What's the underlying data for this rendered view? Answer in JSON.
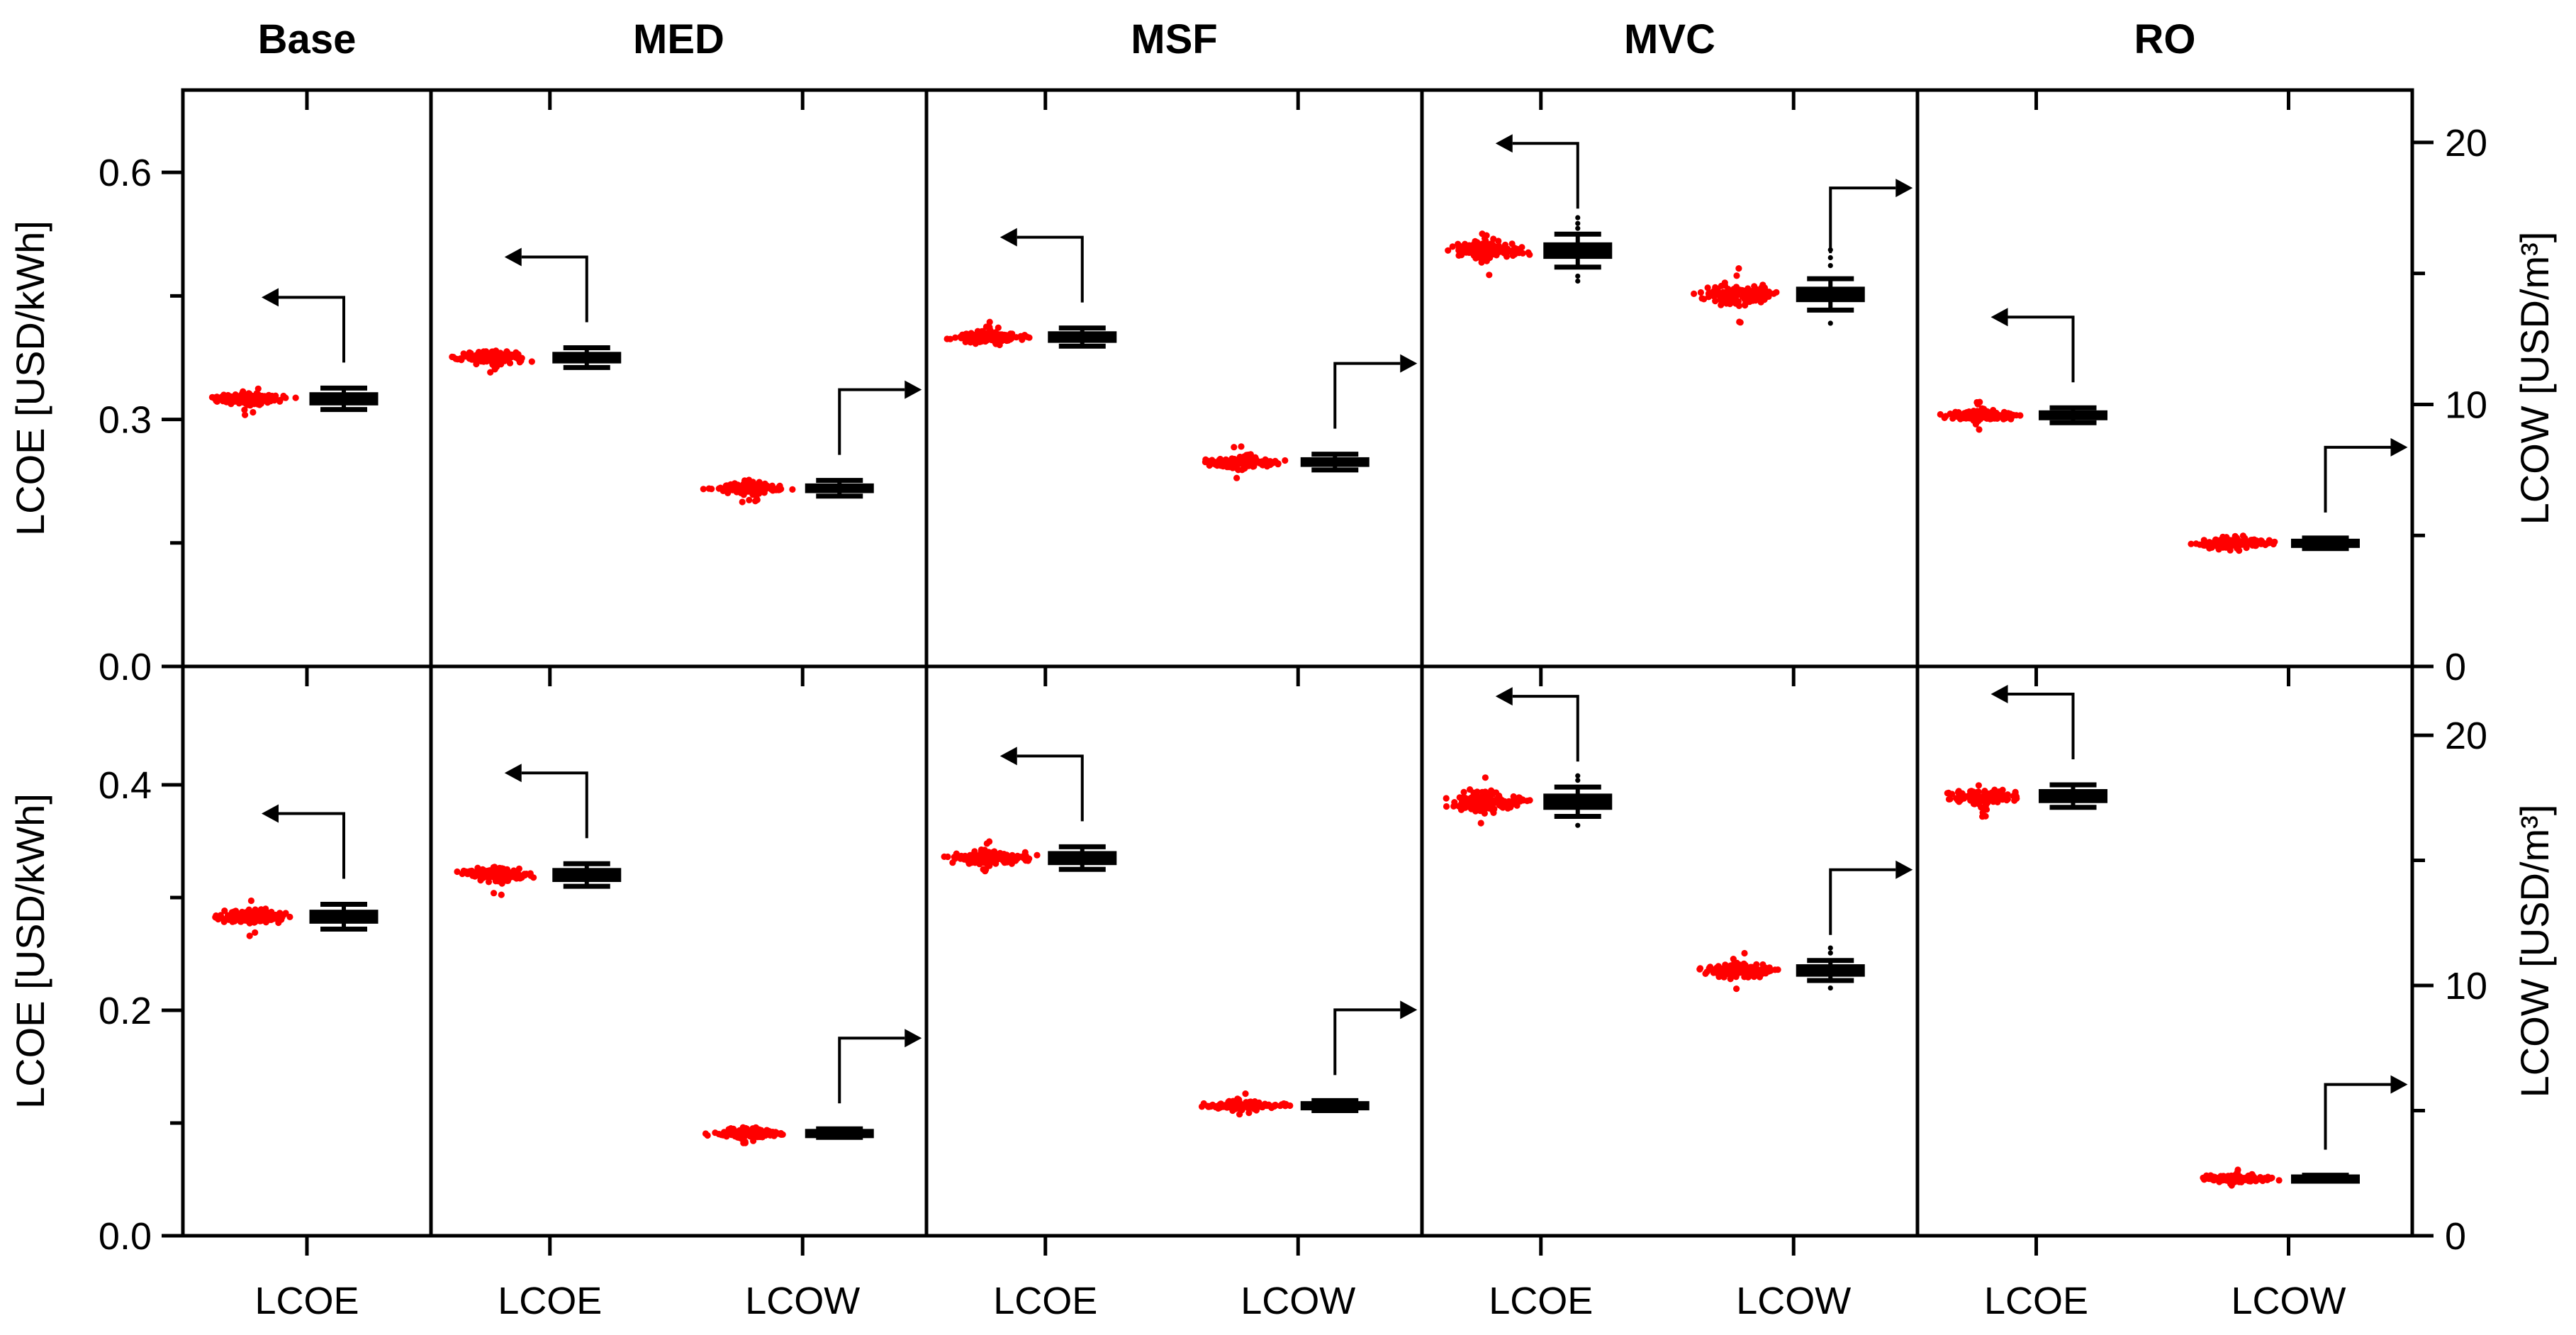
{
  "chart_data": {
    "type": "boxplot-jitter-grid",
    "description": "Monte-Carlo LCOE and LCOW distributions (red jitter clouds) with summary box plots (black) for desalination technologies, two scenario rows",
    "grid": {
      "rows": 2,
      "columns": 5
    },
    "columns": [
      "Base",
      "MED",
      "MSF",
      "MVC",
      "RO"
    ],
    "colors": {
      "points": "#ff0000",
      "box": "#000000",
      "axis": "#000000",
      "background": "#ffffff"
    },
    "legend_position": "none",
    "grid_lines": "off",
    "rows": [
      {
        "name": "row-top",
        "left_axis": {
          "label": "LCOE [USD/kWh]",
          "min": 0,
          "max": 0.7,
          "major_ticks": [
            0.0,
            0.3,
            0.6
          ],
          "minor_ticks": [
            0.15,
            0.45
          ],
          "decimals": 1
        },
        "right_axis": {
          "label": "LCOW [USD/m³]",
          "min": 0,
          "max": 22.0,
          "major_ticks": [
            0,
            10,
            20
          ],
          "minor_ticks": [
            5,
            15
          ],
          "decimals": 0
        },
        "panels": [
          {
            "title": "Base",
            "groups": [
              {
                "label": "LCOE",
                "axis": "left",
                "arrow": "left",
                "center": 0.325,
                "box": [
                  0.312,
                  0.32,
                  0.325,
                  0.33,
                  0.338
                ],
                "jitter_half": 0.009,
                "outliers": []
              }
            ]
          },
          {
            "title": "MED",
            "groups": [
              {
                "label": "LCOE",
                "axis": "left",
                "arrow": "left",
                "center": 0.375,
                "box": [
                  0.363,
                  0.371,
                  0.375,
                  0.379,
                  0.387
                ],
                "jitter_half": 0.009,
                "outliers": []
              },
              {
                "label": "LCOW",
                "axis": "right",
                "arrow": "right",
                "center": 6.8,
                "box": [
                  6.5,
                  6.71,
                  6.8,
                  6.89,
                  7.1
                ],
                "jitter_half": 0.28,
                "outliers": []
              }
            ]
          },
          {
            "title": "MSF",
            "groups": [
              {
                "label": "LCOE",
                "axis": "left",
                "arrow": "left",
                "center": 0.4,
                "box": [
                  0.389,
                  0.396,
                  0.4,
                  0.404,
                  0.411
                ],
                "jitter_half": 0.009,
                "outliers": []
              },
              {
                "label": "LCOW",
                "axis": "right",
                "arrow": "right",
                "center": 7.8,
                "box": [
                  7.5,
                  7.71,
                  7.8,
                  7.89,
                  8.1
                ],
                "jitter_half": 0.28,
                "outliers": []
              }
            ]
          },
          {
            "title": "MVC",
            "groups": [
              {
                "label": "LCOE",
                "axis": "left",
                "arrow": "left",
                "center": 0.505,
                "box": [
                  0.485,
                  0.498,
                  0.505,
                  0.512,
                  0.525
                ],
                "jitter_half": 0.014,
                "outliers": [
                  0.532,
                  0.538,
                  0.545,
                  0.474,
                  0.468
                ]
              },
              {
                "label": "LCOW",
                "axis": "right",
                "arrow": "right",
                "center": 14.2,
                "box": [
                  13.6,
                  14.0,
                  14.2,
                  14.4,
                  14.8
                ],
                "jitter_half": 0.5,
                "outliers": [
                  15.3,
                  15.6,
                  15.9,
                  13.1
                ]
              }
            ]
          },
          {
            "title": "RO",
            "groups": [
              {
                "label": "LCOE",
                "axis": "left",
                "arrow": "left",
                "center": 0.305,
                "box": [
                  0.296,
                  0.302,
                  0.305,
                  0.308,
                  0.314
                ],
                "jitter_half": 0.008,
                "outliers": []
              },
              {
                "label": "LCOW",
                "axis": "right",
                "arrow": "right",
                "center": 4.7,
                "box": [
                  4.5,
                  4.62,
                  4.7,
                  4.78,
                  4.9
                ],
                "jitter_half": 0.26,
                "outliers": []
              }
            ]
          }
        ]
      },
      {
        "name": "row-bottom",
        "left_axis": {
          "label": "LCOE [USD/kWh]",
          "min": 0,
          "max": 0.505,
          "major_ticks": [
            0.0,
            0.2,
            0.4
          ],
          "minor_ticks": [
            0.1,
            0.3
          ],
          "decimals": 1
        },
        "right_axis": {
          "label": "LCOW [USD/m³]",
          "min": 0,
          "max": 22.75,
          "major_ticks": [
            0,
            10,
            20
          ],
          "minor_ticks": [
            5,
            15
          ],
          "decimals": 0
        },
        "panels": [
          {
            "title": "Base",
            "groups": [
              {
                "label": "LCOE",
                "axis": "left",
                "arrow": "left",
                "center": 0.283,
                "box": [
                  0.272,
                  0.279,
                  0.283,
                  0.287,
                  0.294
                ],
                "jitter_half": 0.008,
                "outliers": []
              }
            ]
          },
          {
            "title": "MED",
            "groups": [
              {
                "label": "LCOE",
                "axis": "left",
                "arrow": "left",
                "center": 0.32,
                "box": [
                  0.31,
                  0.316,
                  0.32,
                  0.324,
                  0.33
                ],
                "jitter_half": 0.008,
                "outliers": []
              },
              {
                "label": "LCOW",
                "axis": "right",
                "arrow": "right",
                "center": 4.1,
                "box": [
                  3.93,
                  4.03,
                  4.1,
                  4.17,
                  4.27
                ],
                "jitter_half": 0.22,
                "outliers": []
              }
            ]
          },
          {
            "title": "MSF",
            "groups": [
              {
                "label": "LCOE",
                "axis": "left",
                "arrow": "left",
                "center": 0.335,
                "box": [
                  0.325,
                  0.331,
                  0.335,
                  0.339,
                  0.345
                ],
                "jitter_half": 0.008,
                "outliers": []
              },
              {
                "label": "LCOW",
                "axis": "right",
                "arrow": "right",
                "center": 5.2,
                "box": [
                  5.0,
                  5.12,
                  5.2,
                  5.28,
                  5.4
                ],
                "jitter_half": 0.22,
                "outliers": []
              }
            ]
          },
          {
            "title": "MVC",
            "groups": [
              {
                "label": "LCOE",
                "axis": "left",
                "arrow": "left",
                "center": 0.385,
                "box": [
                  0.372,
                  0.38,
                  0.385,
                  0.39,
                  0.398
                ],
                "jitter_half": 0.011,
                "outliers": [
                  0.404,
                  0.408,
                  0.364
                ]
              },
              {
                "label": "LCOW",
                "axis": "right",
                "arrow": "right",
                "center": 10.6,
                "box": [
                  10.2,
                  10.45,
                  10.6,
                  10.75,
                  11.0
                ],
                "jitter_half": 0.4,
                "outliers": [
                  11.3,
                  11.5,
                  9.9
                ]
              }
            ]
          },
          {
            "title": "RO",
            "groups": [
              {
                "label": "LCOE",
                "axis": "left",
                "arrow": "left",
                "center": 0.39,
                "box": [
                  0.38,
                  0.386,
                  0.39,
                  0.394,
                  0.4
                ],
                "jitter_half": 0.009,
                "outliers": []
              },
              {
                "label": "LCOW",
                "axis": "right",
                "arrow": "right",
                "center": 2.3,
                "box": [
                  2.18,
                  2.25,
                  2.3,
                  2.35,
                  2.42
                ],
                "jitter_half": 0.18,
                "outliers": []
              }
            ]
          }
        ]
      }
    ]
  }
}
